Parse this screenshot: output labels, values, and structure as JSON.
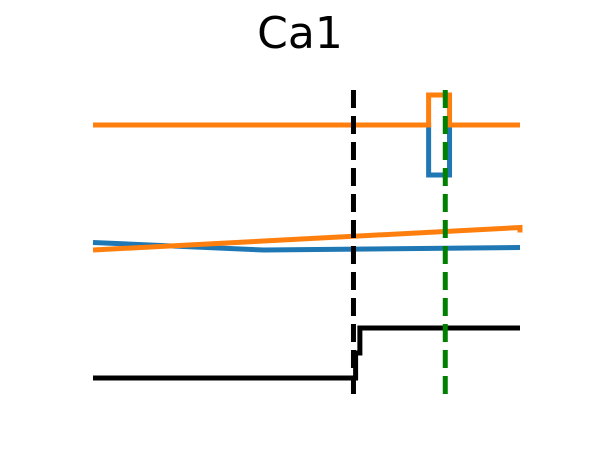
{
  "chart_data": {
    "type": "line",
    "title": "Ca1",
    "xlabel": "",
    "ylabel": "",
    "xlim": [
      0,
      100
    ],
    "grid": false,
    "axes_visible": false,
    "colors": {
      "blue": "#1f77b4",
      "orange": "#ff7f0e",
      "black": "#000000",
      "green": "#008000"
    },
    "panels": [
      {
        "name": "top",
        "ylim": [
          -1.2,
          0.8
        ],
        "series": [
          {
            "color": "#1f77b4",
            "x": [
              0,
              78.6,
              78.6,
              83.5,
              83.5,
              100
            ],
            "y": [
              0,
              0,
              -1,
              -1,
              0,
              0
            ]
          },
          {
            "color": "#ff7f0e",
            "x": [
              0,
              78.6,
              78.6,
              83.5,
              83.5,
              100
            ],
            "y": [
              0,
              0,
              0.6,
              0.6,
              0,
              0
            ]
          }
        ]
      },
      {
        "name": "middle",
        "ylim": [
          -1,
          1
        ],
        "series": [
          {
            "color": "#1f77b4",
            "x": [
              0,
              40,
              100
            ],
            "y": [
              0.15,
              0,
              0.05
            ]
          },
          {
            "color": "#ff7f0e",
            "x": [
              0,
              100,
              100
            ],
            "y": [
              0,
              0.45,
              0.35
            ]
          }
        ]
      },
      {
        "name": "bottom",
        "ylim": [
          -0.2,
          1.2
        ],
        "series": [
          {
            "color": "#000000",
            "x": [
              0,
              61.5,
              61.5,
              62.5,
              62.5,
              100
            ],
            "y": [
              0,
              0,
              0.5,
              0.5,
              1,
              1
            ]
          }
        ]
      }
    ],
    "vlines": [
      {
        "x": 61.0,
        "color": "#000000",
        "style": "dashed"
      },
      {
        "x": 82.5,
        "color": "#008000",
        "style": "dashed"
      }
    ]
  }
}
